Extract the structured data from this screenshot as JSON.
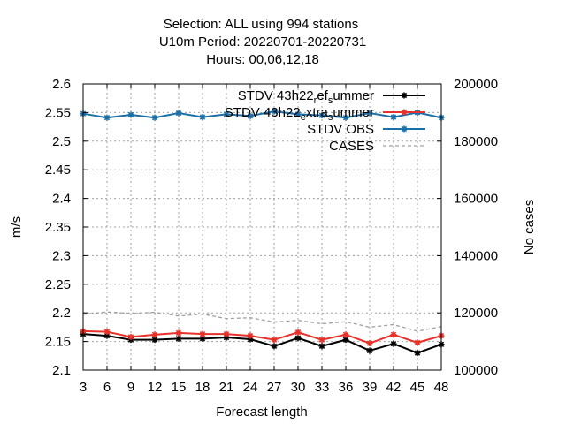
{
  "chart_data": {
    "type": "line",
    "title_lines": [
      "Selection: ALL using   994 stations",
      "U10m   Period: 20220701-20220731",
      "Hours:  00,06,12,18"
    ],
    "xlabel": "Forecast length",
    "ylabel": "m/s",
    "y2label": "No cases",
    "x": [
      3,
      6,
      9,
      12,
      15,
      18,
      21,
      24,
      27,
      30,
      33,
      36,
      39,
      42,
      45,
      48
    ],
    "xlim": [
      3,
      48
    ],
    "ylim": [
      2.1,
      2.6
    ],
    "y2lim": [
      100000,
      200000
    ],
    "yticks": [
      "2.1",
      "2.15",
      "2.2",
      "2.25",
      "2.3",
      "2.35",
      "2.4",
      "2.45",
      "2.5",
      "2.55",
      "2.6"
    ],
    "y2ticks": [
      "100000",
      "120000",
      "140000",
      "160000",
      "180000",
      "200000"
    ],
    "xticks": [
      "3",
      "6",
      "9",
      "12",
      "15",
      "18",
      "21",
      "24",
      "27",
      "30",
      "33",
      "36",
      "39",
      "42",
      "45",
      "48"
    ],
    "grid": true,
    "legend_position": "top-right",
    "series": [
      {
        "name": "STDV 43h22_ref_summer",
        "legend_main": "STDV 43h22",
        "legend_sub": "r",
        "legend_mid": "ef",
        "legend_sub2": "s",
        "legend_tail": "ummer",
        "axis": "y",
        "color": "#000000",
        "style": "line-star",
        "values": [
          2.163,
          2.16,
          2.153,
          2.153,
          2.155,
          2.155,
          2.157,
          2.154,
          2.142,
          2.156,
          2.142,
          2.153,
          2.134,
          2.146,
          2.13,
          2.145
        ]
      },
      {
        "name": "STDV 43h22_extra_summer",
        "legend_main": "STDV 43h22",
        "legend_sub": "e",
        "legend_mid": "xtra",
        "legend_sub2": "s",
        "legend_tail": "ummer",
        "axis": "y",
        "color": "#e8312a",
        "style": "line-star",
        "values": [
          2.168,
          2.167,
          2.158,
          2.162,
          2.165,
          2.163,
          2.163,
          2.16,
          2.153,
          2.166,
          2.153,
          2.162,
          2.147,
          2.162,
          2.148,
          2.16
        ]
      },
      {
        "name": "STDV OBS",
        "legend_main": "STDV OBS",
        "axis": "y",
        "color": "#1a6fa8",
        "style": "line-star",
        "values": [
          2.548,
          2.541,
          2.546,
          2.541,
          2.549,
          2.542,
          2.547,
          2.544,
          2.552,
          2.547,
          2.545,
          2.541,
          2.549,
          2.542,
          2.55,
          2.541
        ]
      },
      {
        "name": "CASES",
        "legend_main": "CASES",
        "axis": "y2",
        "color": "#a0a0a0",
        "style": "dashed",
        "values": [
          119500,
          120300,
          119800,
          120200,
          118900,
          119600,
          118000,
          118300,
          116800,
          117400,
          116200,
          116900,
          115000,
          115900,
          113600,
          115200
        ]
      }
    ]
  }
}
